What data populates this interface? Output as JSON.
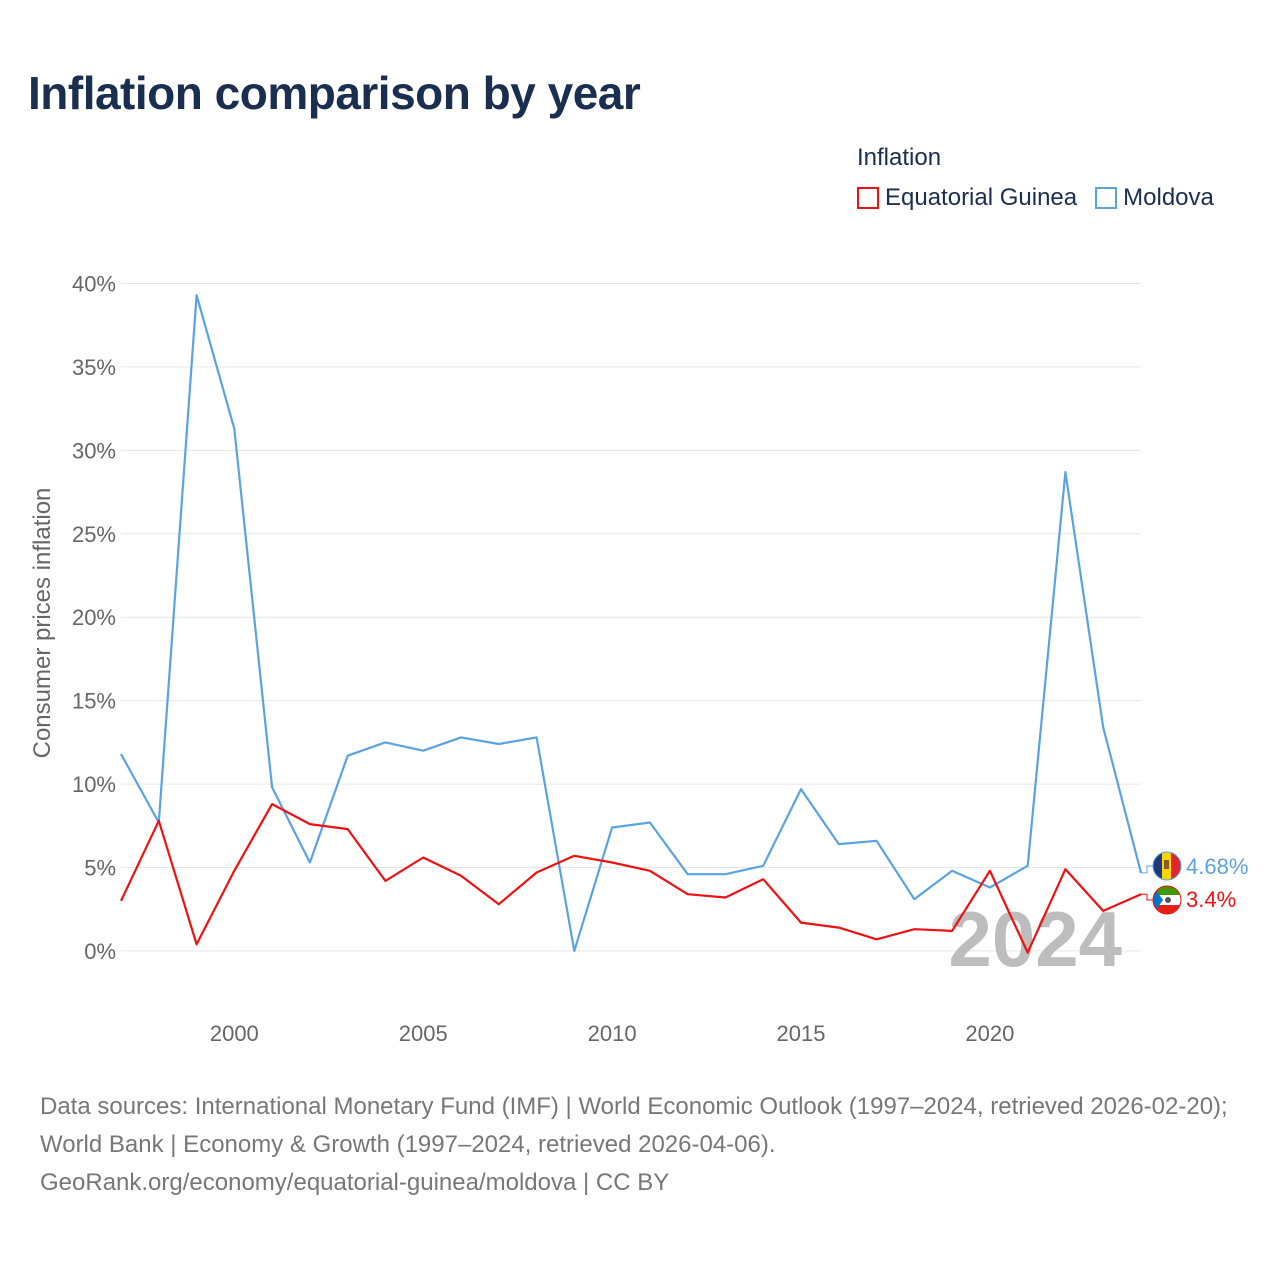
{
  "title": "Inflation comparison by year",
  "legend": {
    "title": "Inflation",
    "items": [
      {
        "label": "Equatorial Guinea",
        "color": "#ee1111"
      },
      {
        "label": "Moldova",
        "color": "#5ba3e0"
      }
    ]
  },
  "year_watermark": "2024",
  "end_labels": {
    "moldova": "4.68%",
    "equatorial_guinea": "3.4%"
  },
  "footer": {
    "sources": "Data sources: International Monetary Fund (IMF) | World Economic Outlook (1997–2024, retrieved 2026-02-20); World Bank | Economy & Growth (1997–2024, retrieved 2026-04-06).",
    "attribution": "GeoRank.org/economy/equatorial-guinea/moldova | CC BY"
  },
  "chart_data": {
    "type": "line",
    "title": "Inflation comparison by year",
    "xlabel": "",
    "ylabel": "Consumer prices inflation",
    "x": [
      1997,
      1998,
      1999,
      2000,
      2001,
      2002,
      2003,
      2004,
      2005,
      2006,
      2007,
      2008,
      2009,
      2010,
      2011,
      2012,
      2013,
      2014,
      2015,
      2016,
      2017,
      2018,
      2019,
      2020,
      2021,
      2022,
      2023,
      2024
    ],
    "xlim": [
      1997,
      2024
    ],
    "ylim": [
      -3.3,
      40
    ],
    "yticks": [
      0,
      5,
      10,
      15,
      20,
      25,
      30,
      35,
      40
    ],
    "ytick_labels": [
      "0%",
      "5%",
      "10%",
      "15%",
      "20%",
      "25%",
      "30%",
      "35%",
      "40%"
    ],
    "xticks": [
      2000,
      2005,
      2010,
      2015,
      2020
    ],
    "xtick_labels": [
      "2000",
      "2005",
      "2010",
      "2015",
      "2020"
    ],
    "grid": true,
    "legend_position": "top-right",
    "series": [
      {
        "name": "Moldova",
        "key": "moldova",
        "color": "#5ba3e0",
        "values": [
          11.8,
          7.7,
          39.3,
          31.3,
          9.8,
          5.3,
          11.7,
          12.5,
          12.0,
          12.8,
          12.4,
          12.8,
          0.0,
          7.4,
          7.7,
          4.6,
          4.6,
          5.1,
          9.7,
          6.4,
          6.6,
          3.1,
          4.8,
          3.8,
          5.1,
          28.7,
          13.4,
          4.68
        ]
      },
      {
        "name": "Equatorial Guinea",
        "key": "equatorial_guinea",
        "color": "#ee1111",
        "values": [
          3.0,
          7.8,
          0.4,
          4.8,
          8.8,
          7.6,
          7.3,
          4.2,
          5.6,
          4.5,
          2.8,
          4.7,
          5.7,
          5.3,
          4.8,
          3.4,
          3.2,
          4.3,
          1.7,
          1.4,
          0.7,
          1.3,
          1.2,
          4.8,
          -0.1,
          4.9,
          2.4,
          3.4
        ]
      }
    ]
  }
}
